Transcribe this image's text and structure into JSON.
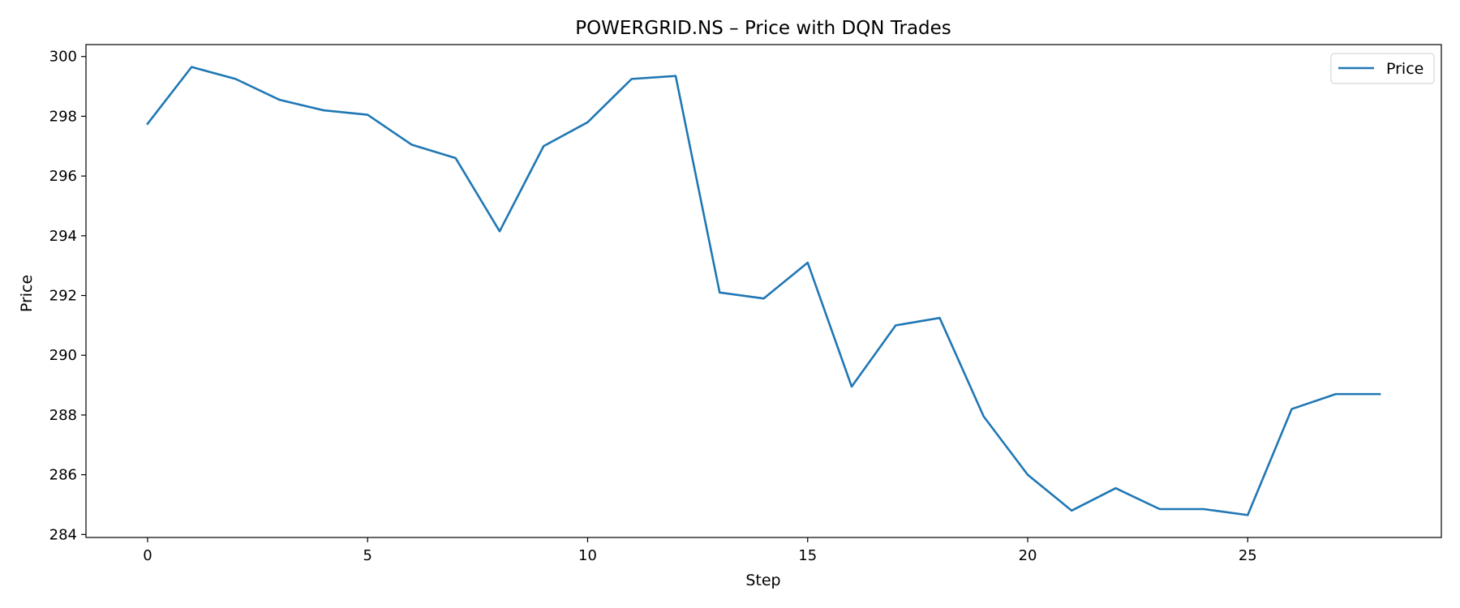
{
  "chart_data": {
    "type": "line",
    "title": "POWERGRID.NS – Price with DQN Trades",
    "xlabel": "Step",
    "ylabel": "Price",
    "xlim": [
      -1.4,
      29.4
    ],
    "ylim": [
      283.9,
      300.4
    ],
    "xticks": [
      0,
      5,
      10,
      15,
      20,
      25
    ],
    "yticks": [
      284,
      286,
      288,
      290,
      292,
      294,
      296,
      298,
      300
    ],
    "grid": false,
    "legend_position": "top-right",
    "series": [
      {
        "name": "Price",
        "color": "#1f77b4",
        "x": [
          0,
          1,
          2,
          3,
          4,
          5,
          6,
          7,
          8,
          9,
          10,
          11,
          12,
          13,
          14,
          15,
          16,
          17,
          18,
          19,
          20,
          21,
          22,
          23,
          24,
          25,
          26,
          27,
          28
        ],
        "values": [
          297.75,
          299.65,
          299.25,
          298.55,
          298.2,
          298.05,
          297.05,
          296.6,
          294.15,
          297.0,
          297.8,
          299.25,
          299.35,
          292.1,
          291.9,
          293.1,
          288.95,
          291.0,
          291.25,
          287.95,
          286.0,
          284.8,
          285.55,
          284.85,
          284.85,
          284.65,
          288.2,
          288.7,
          288.7
        ]
      }
    ]
  }
}
